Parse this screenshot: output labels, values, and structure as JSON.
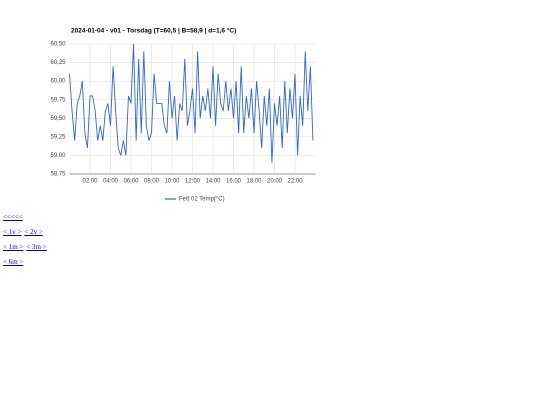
{
  "chart_data": {
    "type": "line",
    "title": "2024-01-04 - v01 - Torsdag (T=60,5 | B=58,9 | d=1,6 °C)",
    "x": [
      0,
      0.25,
      0.5,
      0.75,
      1,
      1.25,
      1.5,
      1.75,
      2,
      2.25,
      2.5,
      2.75,
      3,
      3.25,
      3.5,
      3.75,
      4,
      4.25,
      4.5,
      4.75,
      5,
      5.25,
      5.5,
      5.75,
      6,
      6.25,
      6.5,
      6.75,
      7,
      7.25,
      7.5,
      7.75,
      8,
      8.25,
      8.5,
      8.75,
      9,
      9.25,
      9.5,
      9.75,
      10,
      10.25,
      10.5,
      10.75,
      11,
      11.25,
      11.5,
      11.75,
      12,
      12.25,
      12.5,
      12.75,
      13,
      13.25,
      13.5,
      13.75,
      14,
      14.25,
      14.5,
      14.75,
      15,
      15.25,
      15.5,
      15.75,
      16,
      16.25,
      16.5,
      16.75,
      17,
      17.25,
      17.5,
      17.75,
      18,
      18.25,
      18.5,
      18.75,
      19,
      19.25,
      19.5,
      19.75,
      20,
      20.25,
      20.5,
      20.75,
      21,
      21.25,
      21.5,
      21.75,
      22,
      22.25,
      22.5,
      22.75,
      23,
      23.25,
      23.5,
      23.75
    ],
    "series": [
      {
        "name": "Fett 02 Temp(°C)",
        "color": "#3366cc",
        "values": [
          60.1,
          59.6,
          59.2,
          59.7,
          59.8,
          60.0,
          59.3,
          59.1,
          59.8,
          59.8,
          59.6,
          59.2,
          59.4,
          59.2,
          59.6,
          59.7,
          59.4,
          60.2,
          59.6,
          59.1,
          59.0,
          59.2,
          59.0,
          59.8,
          59.7,
          60.5,
          59.2,
          60.3,
          59.3,
          60.4,
          59.4,
          59.2,
          59.3,
          60.1,
          59.7,
          59.7,
          59.7,
          59.4,
          59.3,
          60.0,
          59.5,
          59.8,
          59.2,
          59.7,
          59.6,
          60.3,
          59.4,
          59.6,
          59.9,
          59.3,
          60.4,
          59.5,
          59.8,
          59.6,
          59.9,
          59.5,
          60.2,
          59.4,
          60.1,
          59.7,
          59.6,
          60.0,
          59.6,
          59.9,
          59.5,
          60.0,
          59.3,
          60.2,
          59.3,
          59.8,
          59.5,
          59.9,
          59.3,
          60.0,
          59.6,
          59.1,
          59.8,
          59.4,
          59.9,
          58.9,
          59.7,
          59.4,
          59.8,
          59.1,
          60.0,
          59.3,
          59.9,
          59.5,
          60.1,
          59.0,
          59.8,
          59.4,
          60.4,
          59.6,
          60.2,
          59.2
        ]
      }
    ],
    "xlim": [
      0,
      24
    ],
    "xticks": [
      {
        "value": 2,
        "label": "02:00"
      },
      {
        "value": 4,
        "label": "04:00"
      },
      {
        "value": 6,
        "label": "06:00"
      },
      {
        "value": 8,
        "label": "08:00"
      },
      {
        "value": 10,
        "label": "10:00"
      },
      {
        "value": 12,
        "label": "12:00"
      },
      {
        "value": 14,
        "label": "14:00"
      },
      {
        "value": 16,
        "label": "16:00"
      },
      {
        "value": 18,
        "label": "18:00"
      },
      {
        "value": 20,
        "label": "20:00"
      },
      {
        "value": 22,
        "label": "22:00"
      }
    ],
    "ylim": [
      58.75,
      60.5
    ],
    "yticks": [
      {
        "value": 58.75,
        "label": "58,75"
      },
      {
        "value": 59,
        "label": "59,00"
      },
      {
        "value": 59.25,
        "label": "59,25"
      },
      {
        "value": 59.5,
        "label": "59,50"
      },
      {
        "value": 59.75,
        "label": "59,75"
      },
      {
        "value": 60,
        "label": "60,00"
      },
      {
        "value": 60.25,
        "label": "60,25"
      },
      {
        "value": 60.5,
        "label": "60,50"
      }
    ],
    "grid": true,
    "legend": "bottom"
  },
  "nav": [
    [
      "<<<<<"
    ],
    [
      "< 1v >",
      "< 2v >"
    ],
    [
      "< 1m >",
      "< 3m >"
    ],
    [
      "< 6m >"
    ]
  ]
}
